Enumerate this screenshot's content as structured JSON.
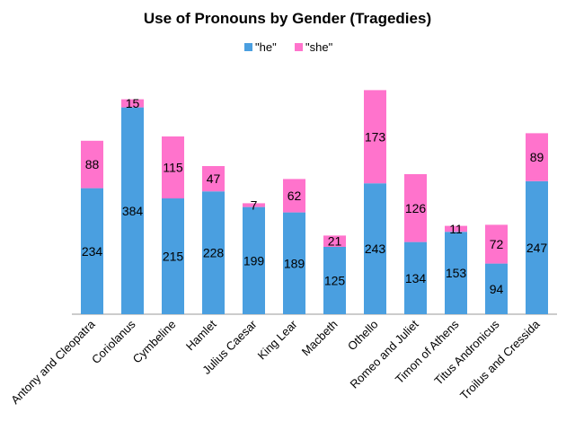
{
  "chart_data": {
    "type": "bar",
    "stacked": true,
    "title": "Use of Pronouns by Gender (Tragedies)",
    "categories": [
      "Antony and Cleopatra",
      "Coriolanus",
      "Cymbeline",
      "Hamlet",
      "Julius Caesar",
      "King Lear",
      "Macbeth",
      "Othello",
      "Romeo and Juliet",
      "Timon of Athens",
      "Titus Andronicus",
      "Troilus and Cressida"
    ],
    "series": [
      {
        "name": "\"he\"",
        "color": "#4a9fe0",
        "values": [
          234,
          384,
          215,
          228,
          199,
          189,
          125,
          243,
          134,
          153,
          94,
          247
        ]
      },
      {
        "name": "\"she\"",
        "color": "#ff73cc",
        "values": [
          88,
          15,
          115,
          47,
          7,
          62,
          21,
          173,
          126,
          11,
          72,
          89
        ]
      }
    ],
    "xlabel": "",
    "ylabel": "",
    "ylim": [
      0,
      420
    ],
    "grid": false,
    "legend_position": "top-center",
    "data_labels": true
  }
}
